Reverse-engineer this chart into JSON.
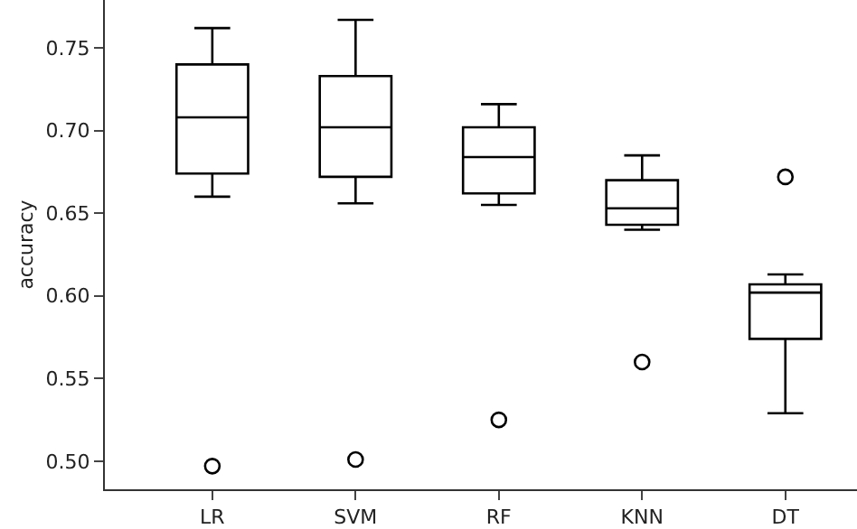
{
  "chart_data": {
    "type": "box",
    "ylabel": "accuracy",
    "categories": [
      "LR",
      "SVM",
      "RF",
      "KNN",
      "DT"
    ],
    "boxes": [
      {
        "low": 0.66,
        "q1": 0.674,
        "median": 0.708,
        "q3": 0.74,
        "high": 0.762,
        "outliers": [
          0.497
        ]
      },
      {
        "low": 0.656,
        "q1": 0.672,
        "median": 0.702,
        "q3": 0.733,
        "high": 0.767,
        "outliers": [
          0.501
        ]
      },
      {
        "low": 0.655,
        "q1": 0.662,
        "median": 0.684,
        "q3": 0.702,
        "high": 0.716,
        "outliers": [
          0.525
        ]
      },
      {
        "low": 0.64,
        "q1": 0.643,
        "median": 0.653,
        "q3": 0.67,
        "high": 0.685,
        "outliers": [
          0.56
        ]
      },
      {
        "low": 0.529,
        "q1": 0.574,
        "median": 0.602,
        "q3": 0.607,
        "high": 0.613,
        "outliers": [
          0.672
        ]
      }
    ],
    "color": "#000000",
    "ylim": [
      0.483,
      0.779
    ],
    "yticks": [
      {
        "value": 0.5,
        "label": "0.50"
      },
      0.55,
      {
        "value": 0.6,
        "label": "0.60"
      },
      0.65,
      {
        "value": 0.7,
        "label": "0.70"
      },
      0.75
    ]
  }
}
